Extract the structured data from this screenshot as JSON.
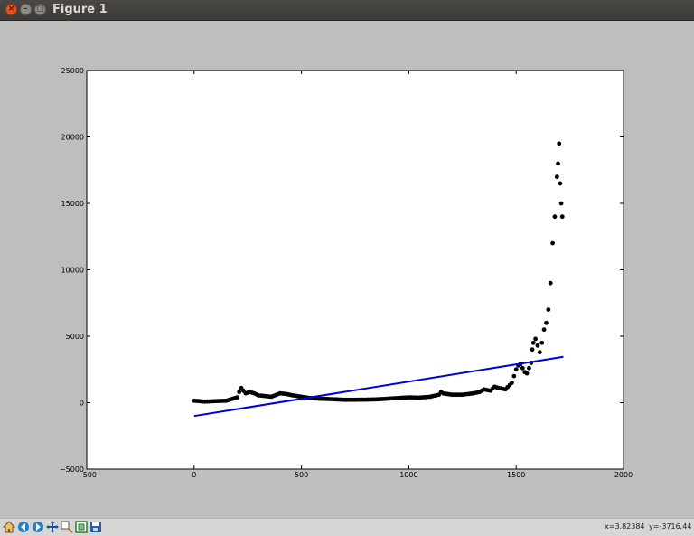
{
  "window": {
    "title": "Figure 1"
  },
  "statusbar": {
    "x_readout": "x=3.82384",
    "y_readout": "y=-3716.44"
  },
  "toolbar": {
    "icons": [
      "home-icon",
      "back-icon",
      "forward-icon",
      "pan-icon",
      "zoom-icon",
      "configure-subplots-icon",
      "save-icon"
    ]
  },
  "colors": {
    "scatter": "#000000",
    "fit_line": "#0000dd",
    "figure_bg": "#bebebe",
    "axes_bg": "#ffffff"
  },
  "chart_data": {
    "type": "scatter",
    "title": "",
    "xlabel": "",
    "ylabel": "",
    "xlim": [
      -500,
      2000
    ],
    "ylim": [
      -5000,
      25000
    ],
    "grid": false,
    "xticks": [
      -500,
      0,
      500,
      1000,
      1500,
      2000
    ],
    "yticks": [
      -5000,
      0,
      5000,
      10000,
      15000,
      20000,
      25000
    ],
    "xtick_labels": [
      "−500",
      "0",
      "500",
      "1000",
      "1500",
      "2000"
    ],
    "ytick_labels": [
      "−5000",
      "0",
      "5000",
      "10000",
      "15000",
      "20000",
      "25000"
    ],
    "series": [
      {
        "kind": "scatter",
        "color": "#000000",
        "x": [
          0,
          50,
          100,
          150,
          200,
          210,
          220,
          230,
          240,
          260,
          280,
          300,
          330,
          360,
          400,
          430,
          460,
          500,
          540,
          580,
          620,
          660,
          700,
          750,
          800,
          850,
          900,
          950,
          1000,
          1050,
          1100,
          1140,
          1150,
          1160,
          1200,
          1250,
          1300,
          1330,
          1350,
          1380,
          1400,
          1420,
          1450,
          1480,
          1500,
          1510,
          1520,
          1530,
          1540,
          1550,
          1560,
          1570,
          1575,
          1580,
          1590,
          1600,
          1610,
          1620,
          1630,
          1640,
          1650,
          1660,
          1670,
          1680,
          1690,
          1695,
          1700,
          1705,
          1710,
          1715
        ],
        "y": [
          150,
          80,
          120,
          150,
          400,
          800,
          1100,
          900,
          700,
          800,
          700,
          550,
          500,
          450,
          700,
          650,
          550,
          450,
          350,
          300,
          280,
          250,
          220,
          220,
          230,
          250,
          300,
          350,
          400,
          380,
          450,
          600,
          800,
          700,
          600,
          600,
          700,
          800,
          1000,
          900,
          1200,
          1100,
          1000,
          1500,
          2500,
          2800,
          2900,
          2600,
          2300,
          2200,
          2600,
          3000,
          4000,
          4500,
          4800,
          4300,
          3800,
          4500,
          5500,
          6000,
          7000,
          9000,
          12000,
          14000,
          17000,
          18000,
          19500,
          16500,
          15000,
          14000
        ]
      },
      {
        "kind": "line",
        "color": "#0000dd",
        "x": [
          0,
          1720
        ],
        "y": [
          -1000,
          3450
        ]
      }
    ]
  }
}
